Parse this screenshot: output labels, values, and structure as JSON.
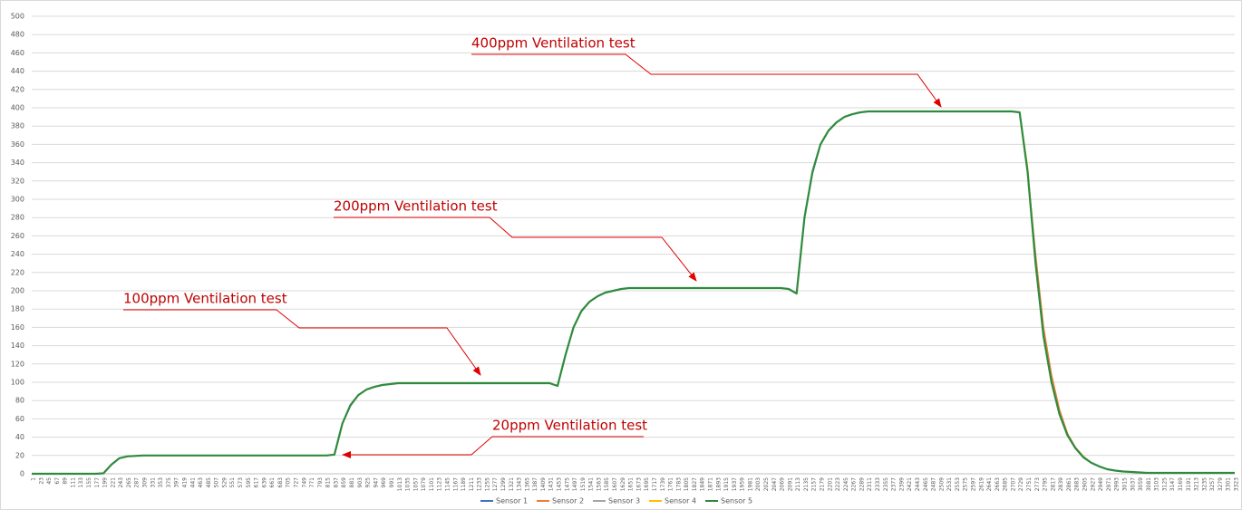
{
  "chart_data": {
    "type": "line",
    "categories": [
      1,
      23,
      45,
      67,
      89,
      111,
      133,
      155,
      177,
      199,
      221,
      243,
      265,
      287,
      309,
      331,
      353,
      375,
      397,
      419,
      441,
      463,
      485,
      507,
      529,
      551,
      573,
      595,
      617,
      639,
      661,
      683,
      705,
      727,
      749,
      771,
      793,
      815,
      837,
      859,
      881,
      903,
      925,
      947,
      969,
      991,
      1013,
      1035,
      1057,
      1079,
      1101,
      1123,
      1145,
      1167,
      1189,
      1211,
      1233,
      1255,
      1277,
      1299,
      1321,
      1343,
      1365,
      1387,
      1409,
      1431,
      1453,
      1475,
      1497,
      1519,
      1541,
      1563,
      1585,
      1607,
      1629,
      1651,
      1673,
      1695,
      1717,
      1739,
      1761,
      1783,
      1805,
      1827,
      1849,
      1871,
      1893,
      1915,
      1937,
      1959,
      1981,
      2003,
      2025,
      2047,
      2069,
      2091,
      2113,
      2135,
      2157,
      2179,
      2201,
      2223,
      2245,
      2267,
      2289,
      2311,
      2333,
      2355,
      2377,
      2399,
      2421,
      2443,
      2465,
      2487,
      2509,
      2531,
      2553,
      2575,
      2597,
      2619,
      2641,
      2663,
      2685,
      2707,
      2729,
      2751,
      2773,
      2795,
      2817,
      2839,
      2861,
      2883,
      2905,
      2927,
      2949,
      2971,
      2993,
      3015,
      3037,
      3059,
      3081,
      3103,
      3125,
      3147,
      3169,
      3191,
      3213,
      3235,
      3257,
      3279,
      3301,
      3323
    ],
    "series": [
      {
        "name": "Sensor 1",
        "color": "#4472c4",
        "values": [
          0,
          0,
          0,
          0,
          0,
          0,
          0,
          0,
          0,
          0.5,
          10,
          17,
          19,
          19.5,
          20,
          20,
          20,
          20,
          20,
          20,
          20,
          20,
          20,
          20,
          20,
          20,
          20,
          20,
          20,
          20,
          20,
          20,
          20,
          20,
          20,
          20,
          20,
          20,
          21,
          55,
          74,
          86,
          92,
          95,
          97,
          98,
          99,
          99,
          99,
          99,
          99,
          99,
          99,
          99,
          99,
          99,
          99,
          99,
          99,
          99,
          99,
          99,
          99,
          99,
          99,
          99,
          96,
          130,
          160,
          178,
          188,
          194,
          198,
          200,
          202,
          203,
          203,
          203,
          203,
          203,
          203,
          203,
          203,
          203,
          203,
          203,
          203,
          203,
          203,
          203,
          203,
          203,
          203,
          203,
          203,
          202,
          197,
          280,
          328,
          360,
          375,
          384,
          390,
          393,
          395,
          396,
          396,
          396,
          396,
          396,
          396,
          396,
          396,
          396,
          396,
          396,
          396,
          396,
          396,
          396,
          396,
          396,
          396,
          396,
          395,
          330,
          230,
          150,
          100,
          65,
          42,
          28,
          18,
          12,
          8,
          5,
          3.5,
          2.5,
          2,
          1.5,
          1,
          1,
          1,
          1,
          1,
          1,
          1,
          1,
          1,
          1,
          1,
          1
        ]
      },
      {
        "name": "Sensor 2",
        "color": "#ed7d31",
        "values": [
          0,
          0,
          0,
          0,
          0,
          0,
          0,
          0,
          0,
          0.5,
          10,
          17,
          19,
          19.5,
          20,
          20,
          20,
          20,
          20,
          20,
          20,
          20,
          20,
          20,
          20,
          20,
          20,
          20,
          20,
          20,
          20,
          20,
          20,
          20,
          20,
          20,
          20,
          20,
          21,
          55,
          75,
          86,
          92,
          95,
          97,
          98,
          99,
          99,
          99,
          99,
          99,
          99,
          99,
          99,
          99,
          99,
          99,
          99,
          99,
          99,
          99,
          99,
          99,
          99,
          99,
          99,
          96,
          130,
          160,
          178,
          188,
          194,
          198,
          200,
          202,
          203,
          203,
          203,
          203,
          203,
          203,
          203,
          203,
          203,
          203,
          203,
          203,
          203,
          203,
          203,
          203,
          203,
          203,
          203,
          203,
          202,
          197,
          280,
          330,
          360,
          375,
          384,
          390,
          393,
          395,
          396,
          396,
          396,
          396,
          396,
          396,
          396,
          396,
          396,
          396,
          396,
          396,
          396,
          396,
          396,
          396,
          396,
          396,
          396,
          395,
          330,
          240,
          160,
          108,
          70,
          44,
          29,
          19,
          12,
          8,
          5,
          3.5,
          2.5,
          2,
          1.5,
          1,
          1,
          1,
          1,
          1,
          1,
          1,
          1,
          1,
          1,
          1,
          1
        ]
      },
      {
        "name": "Sensor 3",
        "color": "#a5a5a5",
        "values": [
          0,
          0,
          0,
          0,
          0,
          0,
          0,
          0,
          0,
          0.5,
          10,
          17,
          19,
          19.5,
          20,
          20,
          20,
          20,
          20,
          20,
          20,
          20,
          20,
          20,
          20,
          20,
          20,
          20,
          20,
          20,
          20,
          20,
          20,
          20,
          20,
          20,
          20,
          20,
          21,
          55,
          75,
          86,
          92,
          95,
          97,
          98,
          99,
          99,
          99,
          99,
          99,
          99,
          99,
          99,
          99,
          99,
          99,
          99,
          99,
          99,
          99,
          99,
          99,
          99,
          99,
          99,
          96,
          130,
          160,
          177,
          188,
          194,
          198,
          200,
          202,
          203,
          203,
          203,
          203,
          203,
          203,
          203,
          203,
          203,
          203,
          203,
          203,
          203,
          203,
          203,
          203,
          203,
          203,
          203,
          203,
          202,
          197,
          280,
          330,
          360,
          375,
          384,
          390,
          393,
          395,
          396,
          396,
          396,
          396,
          396,
          396,
          396,
          396,
          396,
          396,
          396,
          396,
          396,
          396,
          396,
          396,
          396,
          396,
          396,
          395,
          330,
          230,
          150,
          100,
          65,
          42,
          28,
          18,
          12,
          8,
          5,
          3.5,
          2.5,
          2,
          1.5,
          1,
          1,
          1,
          1,
          1,
          1,
          1,
          1,
          1,
          1,
          1,
          1
        ]
      },
      {
        "name": "Sensor 4",
        "color": "#ffc000",
        "values": [
          0,
          0,
          0,
          0,
          0,
          0,
          0,
          0,
          0,
          0.5,
          10,
          17,
          19,
          19.5,
          20,
          20,
          20,
          20,
          20,
          20,
          20,
          20,
          20,
          20,
          20,
          20,
          20,
          20,
          20,
          20,
          20,
          20,
          20,
          20,
          20,
          20,
          20,
          20,
          21,
          55,
          75,
          86,
          92,
          95,
          97,
          98,
          99,
          99,
          99,
          99,
          99,
          99,
          99,
          99,
          99,
          99,
          99,
          99,
          99,
          99,
          99,
          99,
          99,
          99,
          99,
          99,
          96,
          130,
          160,
          178,
          188,
          194,
          198,
          200,
          202,
          203,
          203,
          203,
          203,
          203,
          203,
          203,
          203,
          203,
          203,
          203,
          203,
          203,
          203,
          203,
          203,
          203,
          203,
          203,
          203,
          202,
          197,
          280,
          330,
          360,
          375,
          384,
          390,
          393,
          395,
          396,
          396,
          396,
          396,
          396,
          396,
          396,
          396,
          396,
          396,
          396,
          396,
          396,
          396,
          396,
          396,
          396,
          396,
          396,
          395,
          335,
          232,
          152,
          101,
          66,
          42,
          28,
          18,
          12,
          8,
          5,
          3.5,
          2.5,
          2,
          1.5,
          1,
          1,
          1,
          1,
          1,
          1,
          1,
          1,
          1,
          1,
          1,
          1
        ]
      },
      {
        "name": "Sensor 5",
        "color": "#2e8b3e",
        "values": [
          0,
          0,
          0,
          0,
          0,
          0,
          0,
          0,
          0,
          0.5,
          10,
          17,
          19,
          19.5,
          20,
          20,
          20,
          20,
          20,
          20,
          20,
          20,
          20,
          20,
          20,
          20,
          20,
          20,
          20,
          20,
          20,
          20,
          20,
          20,
          20,
          20,
          20,
          20,
          21,
          55,
          75,
          86,
          92,
          95,
          97,
          98,
          99,
          99,
          99,
          99,
          99,
          99,
          99,
          99,
          99,
          99,
          99,
          99,
          99,
          99,
          99,
          99,
          99,
          99,
          99,
          99,
          96,
          130,
          160,
          178,
          188,
          194,
          198,
          200,
          202,
          203,
          203,
          203,
          203,
          203,
          203,
          203,
          203,
          203,
          203,
          203,
          203,
          203,
          203,
          203,
          203,
          203,
          203,
          203,
          203,
          202,
          197,
          280,
          330,
          360,
          375,
          384,
          390,
          393,
          395,
          396,
          396,
          396,
          396,
          396,
          396,
          396,
          396,
          396,
          396,
          396,
          396,
          396,
          396,
          396,
          396,
          396,
          396,
          396,
          395,
          330,
          230,
          150,
          100,
          65,
          42,
          28,
          18,
          12,
          8,
          5,
          3.5,
          2.5,
          2,
          1.5,
          1,
          1,
          1,
          1,
          1,
          1,
          1,
          1,
          1,
          1,
          1,
          1
        ]
      }
    ],
    "ylim": [
      0,
      500
    ],
    "yticks": [
      0,
      20,
      40,
      60,
      80,
      100,
      120,
      140,
      160,
      180,
      200,
      220,
      240,
      260,
      280,
      300,
      320,
      340,
      360,
      380,
      400,
      420,
      440,
      460,
      480,
      500
    ],
    "grid": true,
    "legend": "bottom",
    "annotations": [
      "400ppm Ventilation test",
      "200ppm Ventilation test",
      "100ppm Ventilation test",
      "20ppm Ventilation test"
    ]
  }
}
